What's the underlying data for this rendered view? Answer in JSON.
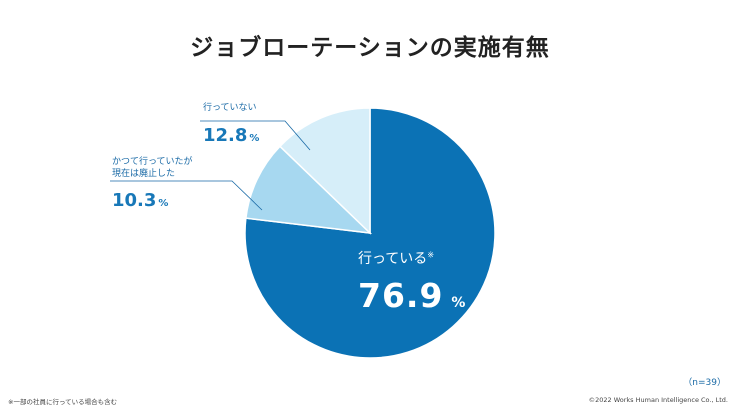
{
  "title": "ジョブローテーションの実施有無",
  "chart_data": {
    "type": "pie",
    "slices": [
      {
        "label": "行っている",
        "note": "※",
        "value": 76.9,
        "color": "#0b72b5"
      },
      {
        "label": "かつて行っていたが現在は廃止した",
        "value": 10.3,
        "color": "#a7d8f0"
      },
      {
        "label": "行っていない",
        "value": 12.8,
        "color": "#d6eef9"
      }
    ],
    "unit": "%"
  },
  "labels": {
    "main_name": "行っている",
    "main_note": "※",
    "main_value": "76.9",
    "unit": "%",
    "no_line1": "行っていない",
    "no_value": "12.8",
    "past_line1": "かつて行っていたが",
    "past_line2": "現在は廃止した",
    "past_value": "10.3"
  },
  "sample_size": "（n=39）",
  "footnote": "※一部の社員に行っている場合も含む",
  "copyright": "©2022 Works Human Intelligence Co., Ltd."
}
